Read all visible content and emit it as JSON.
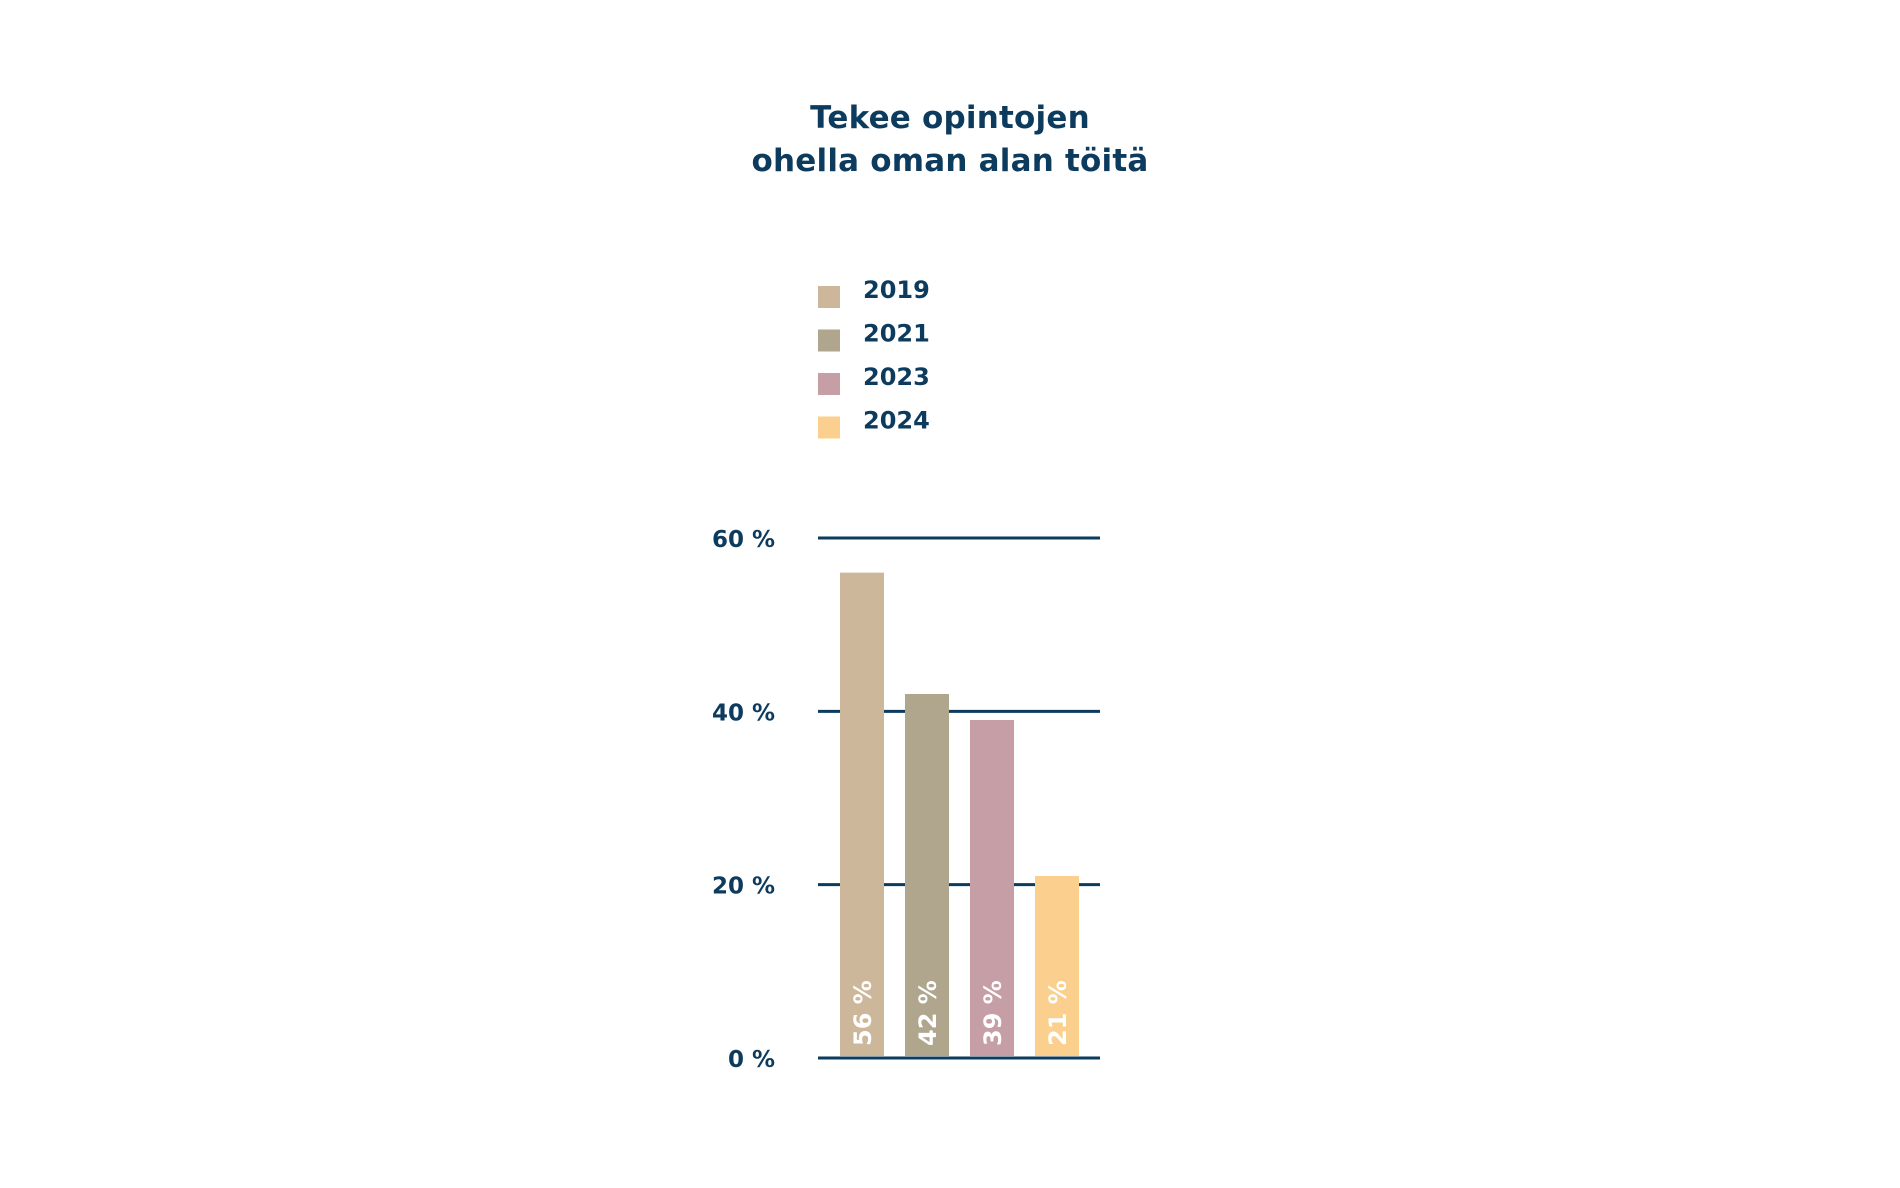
{
  "chart_data": {
    "type": "bar",
    "title_lines": [
      "Tekee opintojen",
      "ohella oman alan töitä"
    ],
    "categories": [
      "2019",
      "2021",
      "2023",
      "2024"
    ],
    "values": [
      56,
      42,
      39,
      21
    ],
    "value_labels": [
      "56 %",
      "42 %",
      "39 %",
      "21 %"
    ],
    "colors": [
      "#cdb79a",
      "#b0a68e",
      "#c59ea6",
      "#fbd08e"
    ],
    "legend": {
      "entries": [
        "2019",
        "2021",
        "2023",
        "2024"
      ],
      "placement": "top-left"
    },
    "ylim": [
      0,
      60
    ],
    "yticks": [
      0,
      20,
      40,
      60
    ],
    "ytick_labels": [
      "0 %",
      "20 %",
      "40 %",
      "60 %"
    ],
    "grid": true,
    "text_color": "#0d3b5e",
    "label_color": "#ffffff"
  }
}
